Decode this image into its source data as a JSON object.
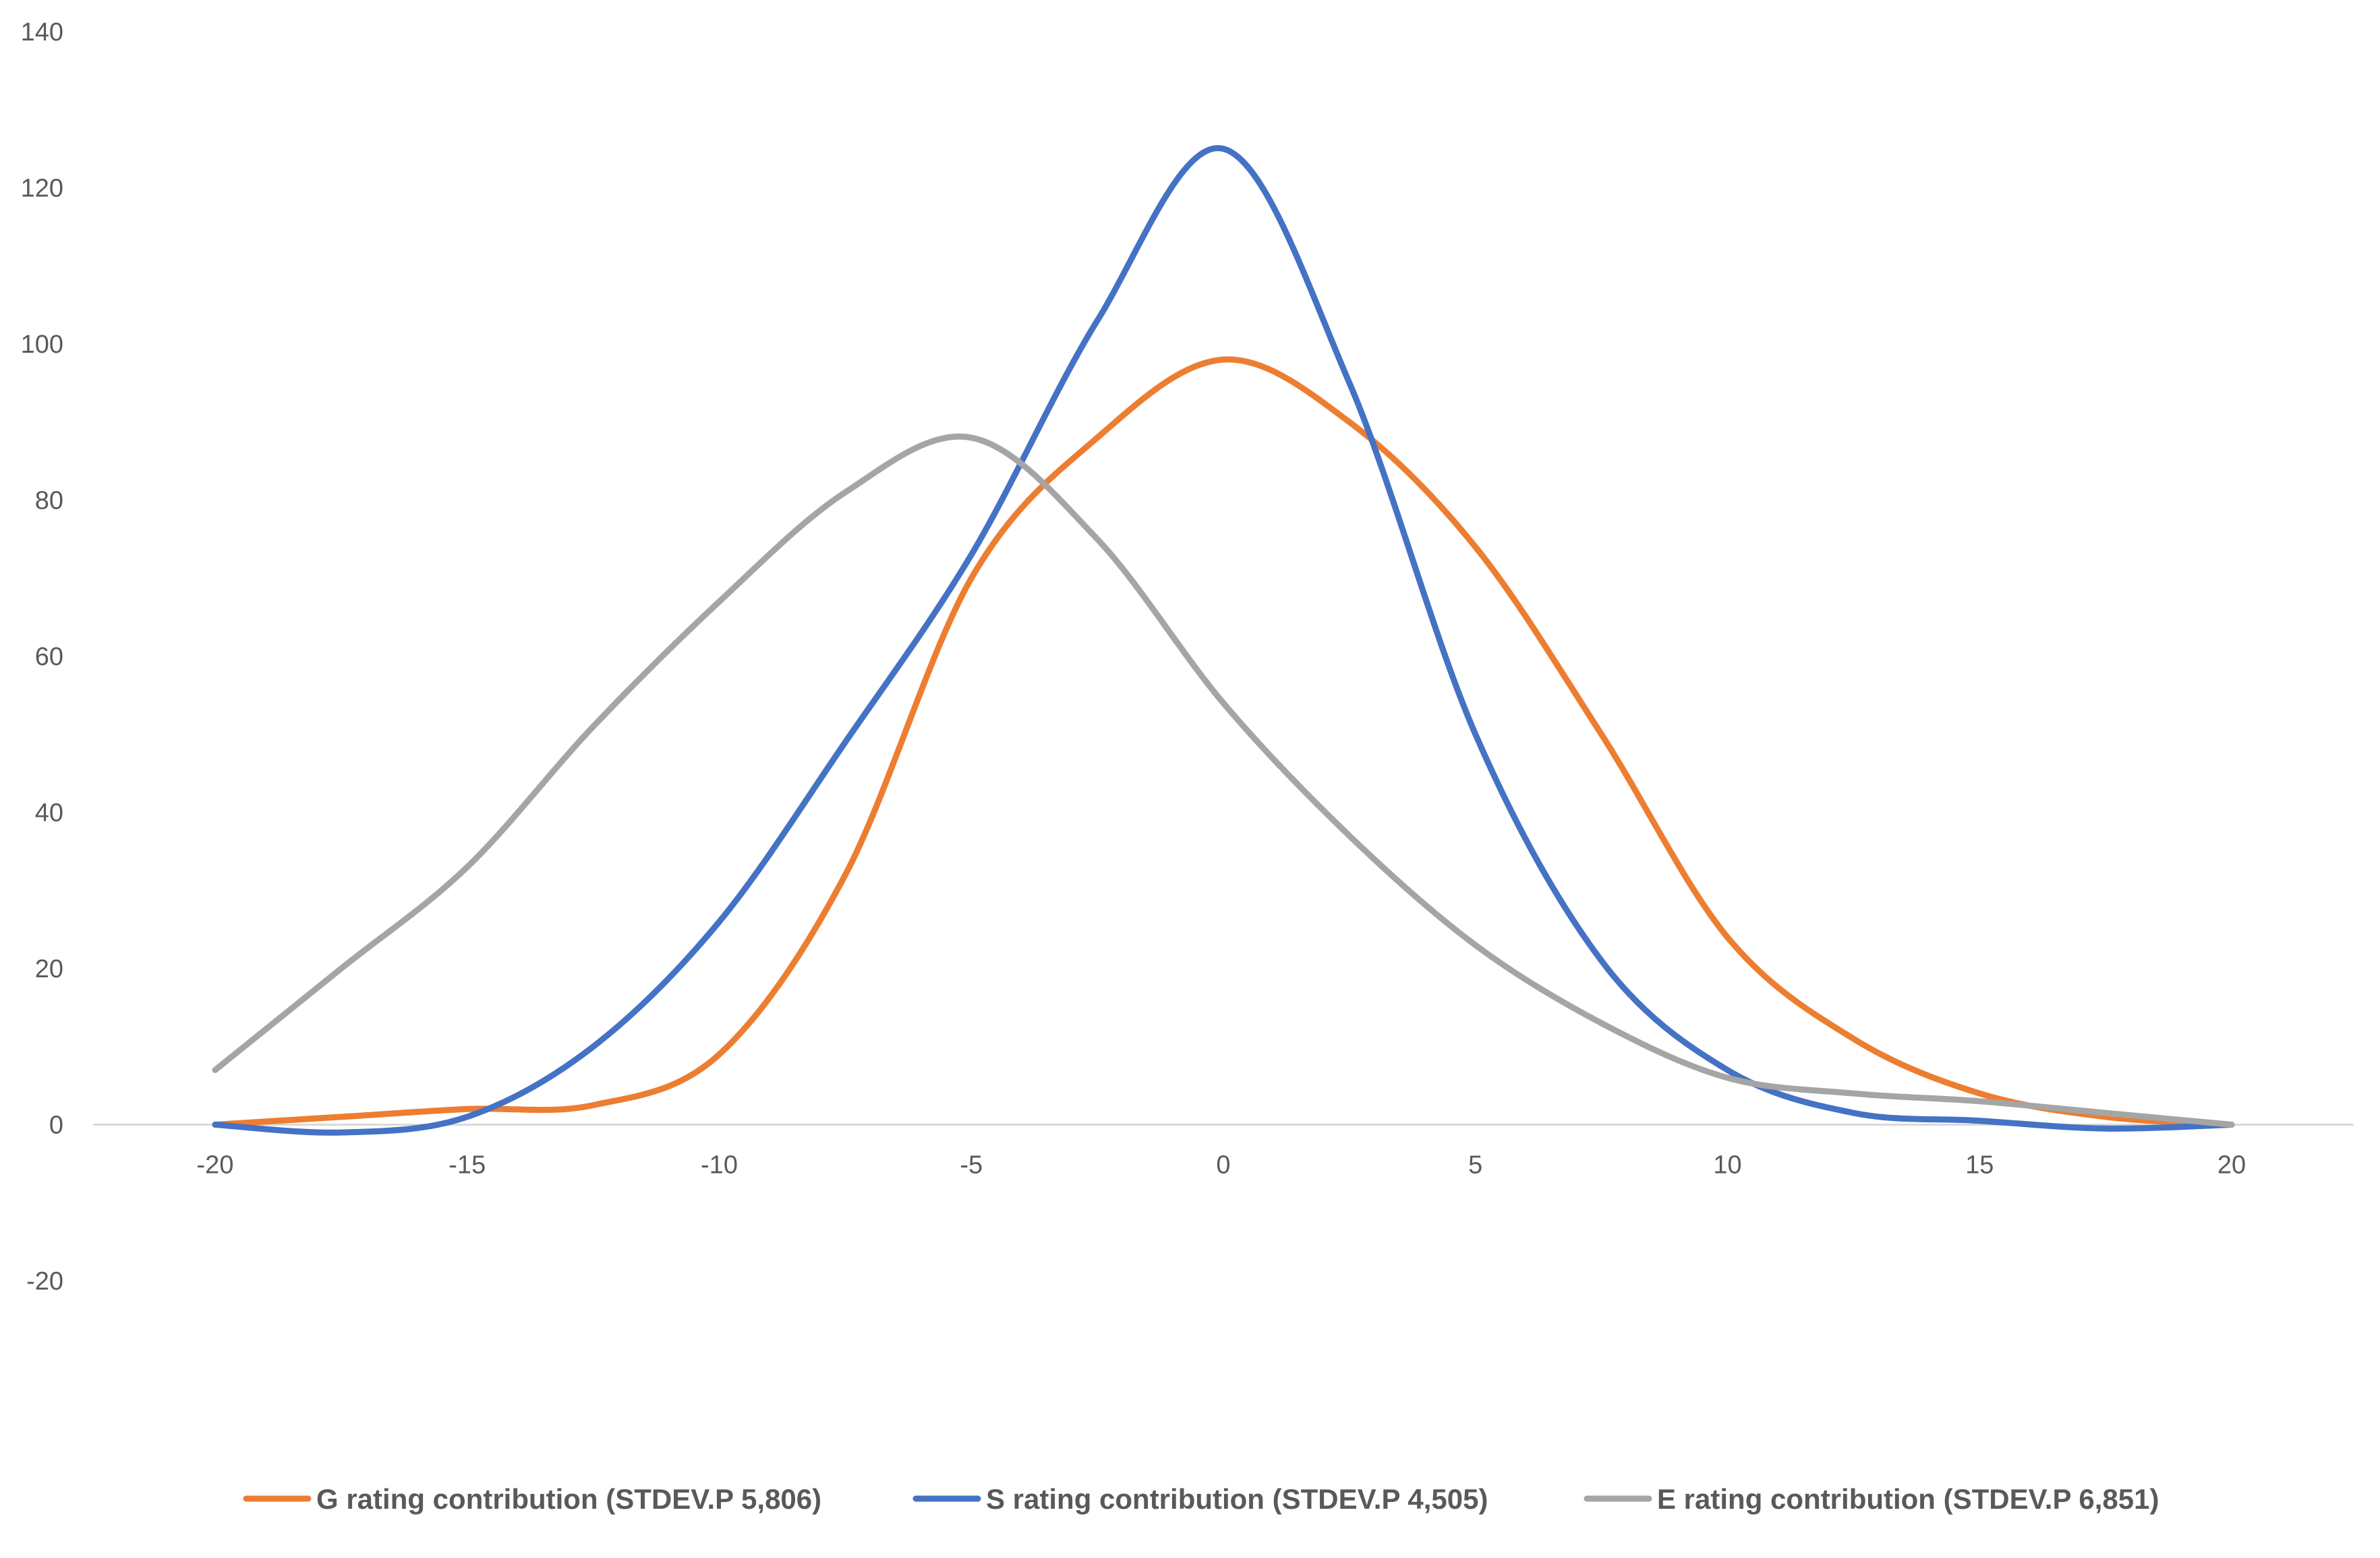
{
  "chart_data": {
    "type": "line",
    "smooth": true,
    "title": "",
    "xlabel": "",
    "ylabel": "",
    "xlim": [
      -20,
      20
    ],
    "ylim": [
      -20,
      140
    ],
    "x_ticks": [
      "-20",
      "-15",
      "-10",
      "-5",
      "0",
      "5",
      "10",
      "15",
      "20"
    ],
    "y_ticks": [
      "140",
      "120",
      "100",
      "80",
      "60",
      "40",
      "20",
      "0",
      "-20"
    ],
    "grid": false,
    "legend_position": "bottom",
    "series": [
      {
        "name": "G rating contribution (STDEV.P 5,806)",
        "color": "#ED7D31",
        "x": [
          -20,
          -17.5,
          -15,
          -12.5,
          -10,
          -7.5,
          -5,
          -2.5,
          0,
          2.5,
          5,
          7.5,
          10,
          12.5,
          15,
          17.5,
          20
        ],
        "y": [
          0,
          1,
          2,
          2.5,
          9,
          32,
          70,
          88,
          98,
          90,
          74,
          50,
          24,
          11,
          4,
          1,
          0
        ]
      },
      {
        "name": "S rating contribution (STDEV.P 4,505)",
        "color": "#4472C4",
        "x": [
          -20,
          -17.5,
          -15,
          -12.5,
          -10,
          -7.5,
          -5,
          -2.5,
          0,
          2.5,
          5,
          7.5,
          10,
          12.5,
          15,
          17.5,
          20
        ],
        "y": [
          0,
          -1,
          1,
          10,
          26,
          49,
          73,
          103,
          125,
          95,
          50,
          21,
          7,
          1.5,
          0.5,
          -0.5,
          0
        ]
      },
      {
        "name": "E rating contribution (STDEV.P 6,851)",
        "color": "#A5A5A5",
        "x": [
          -20,
          -17.5,
          -15,
          -12.5,
          -10,
          -7.5,
          -5,
          -2.5,
          0,
          2.5,
          5,
          7.5,
          10,
          12.5,
          15,
          17.5,
          20
        ],
        "y": [
          7,
          20,
          33,
          51,
          67,
          81,
          88,
          75,
          54,
          37,
          23,
          13,
          6,
          4,
          3,
          1.5,
          0
        ]
      }
    ]
  }
}
